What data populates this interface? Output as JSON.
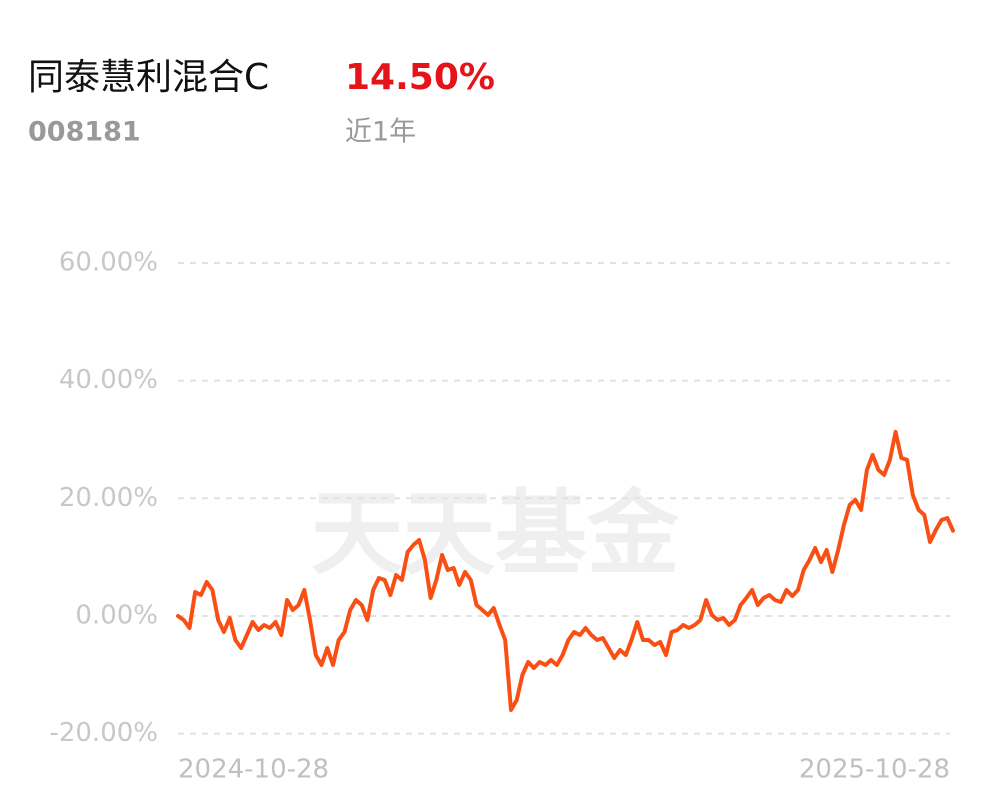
{
  "header": {
    "title": "同泰慧利混合C",
    "return": "14.50%",
    "code": "008181",
    "period": "近1年"
  },
  "chart_data": {
    "type": "line",
    "watermark": "天天基金",
    "color": "#fa4f14",
    "categories": [
      "2024-10-28",
      null,
      null,
      null,
      null,
      null,
      null,
      null,
      null,
      null,
      null,
      null,
      null,
      null,
      null,
      null,
      null,
      null,
      null,
      null,
      null,
      null,
      null,
      null,
      null,
      null,
      null,
      null,
      null,
      null,
      null,
      null,
      null,
      null,
      null,
      null,
      null,
      null,
      null,
      null,
      null,
      null,
      null,
      null,
      null,
      null,
      null,
      null,
      null,
      null,
      null,
      null,
      null,
      null,
      null,
      null,
      null,
      null,
      null,
      null,
      null,
      null,
      null,
      null,
      null,
      null,
      null,
      null,
      null,
      null,
      null,
      null,
      null,
      null,
      null,
      null,
      null,
      null,
      null,
      null,
      null,
      null,
      null,
      null,
      null,
      null,
      null,
      null,
      null,
      null,
      null,
      null,
      null,
      null,
      null,
      null,
      null,
      null,
      null,
      null,
      null,
      null,
      null,
      null,
      null,
      null,
      null,
      null,
      null,
      null,
      null,
      null,
      null,
      null,
      null,
      null,
      null,
      null,
      null,
      null,
      null,
      null,
      null,
      null,
      null,
      null,
      null,
      null,
      null,
      null,
      null,
      null,
      null,
      null,
      null,
      "2025-10-28"
    ],
    "values": [
      0,
      -0.68,
      -2.04,
      4.08,
      3.57,
      5.78,
      4.42,
      -0.68,
      -2.72,
      -0.34,
      -4.08,
      -5.44,
      -3.23,
      -1.02,
      -2.38,
      -1.53,
      -2.04,
      -1.02,
      -3.23,
      2.72,
      1.02,
      1.87,
      4.42,
      -0.68,
      -6.63,
      -8.33,
      -5.44,
      -8.33,
      -4.08,
      -2.72,
      1.02,
      2.72,
      1.87,
      -0.68,
      4.42,
      6.46,
      6.12,
      3.57,
      6.97,
      6.12,
      10.88,
      12.07,
      12.92,
      9.52,
      3.06,
      6.12,
      10.37,
      7.82,
      8.16,
      5.27,
      7.48,
      6.12,
      1.87,
      1.02,
      0.17,
      1.36,
      -1.53,
      -4.08,
      -15.98,
      -14.28,
      -10.03,
      -7.82,
      -8.84,
      -7.82,
      -8.33,
      -7.48,
      -8.33,
      -6.63,
      -4.08,
      -2.72,
      -3.23,
      -2.04,
      -3.23,
      -4.08,
      -3.74,
      -5.44,
      -7.14,
      -5.78,
      -6.63,
      -4.08,
      -1.02,
      -4.08,
      -4.08,
      -4.93,
      -4.42,
      -6.63,
      -2.72,
      -2.38,
      -1.53,
      -2.04,
      -1.53,
      -0.68,
      2.72,
      0.17,
      -0.68,
      -0.34,
      -1.53,
      -0.68,
      1.87,
      3.06,
      4.42,
      1.87,
      3.06,
      3.57,
      2.72,
      2.38,
      4.42,
      3.4,
      4.42,
      7.82,
      9.52,
      11.56,
      9.18,
      11.22,
      7.48,
      11.22,
      15.47,
      18.87,
      19.72,
      18.02,
      24.82,
      27.37,
      24.82,
      23.97,
      26.52,
      31.28,
      26.86,
      26.52,
      20.57,
      18.02,
      17.17,
      12.58,
      14.62,
      16.32,
      16.66,
      14.5
    ],
    "ylim": [
      -22,
      62
    ],
    "yticks": [
      {
        "value": 60,
        "label": "60.00%"
      },
      {
        "value": 40,
        "label": "40.00%"
      },
      {
        "value": 20,
        "label": "20.00%"
      },
      {
        "value": 0,
        "label": "0.00%"
      },
      {
        "value": -20,
        "label": "-20.00%"
      }
    ],
    "grid": true
  }
}
